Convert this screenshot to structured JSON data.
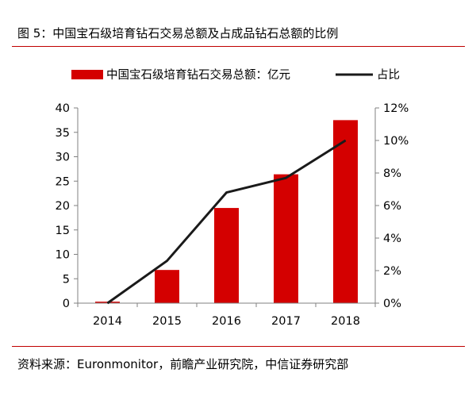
{
  "figure": {
    "title": "图 5：中国宝石级培育钻石交易总额及占成品钻石总额的比例",
    "source": "资料来源：Euronmonitor，前瞻产业研究院，中信证券研究部"
  },
  "colors": {
    "bar": "#d40000",
    "line": "#1a1a1a",
    "accent_rule": "#c00000"
  },
  "chart_data": {
    "type": "bar",
    "categories": [
      "2014",
      "2015",
      "2016",
      "2017",
      "2018"
    ],
    "series": [
      {
        "name": "中国宝石级培育钻石交易总额：亿元",
        "type": "bar",
        "axis": "left",
        "values": [
          0.3,
          6.8,
          19.5,
          26.4,
          37.5
        ]
      },
      {
        "name": "占比",
        "type": "line",
        "axis": "right",
        "values": [
          0.0,
          2.6,
          6.8,
          7.7,
          10.0
        ]
      }
    ],
    "y_left": {
      "min": 0,
      "max": 40,
      "ticks": [
        "0",
        "5",
        "10",
        "15",
        "20",
        "25",
        "30",
        "35",
        "40"
      ]
    },
    "y_right": {
      "min": 0,
      "max": 12,
      "ticks": [
        "0%",
        "2%",
        "4%",
        "6%",
        "8%",
        "10%",
        "12%"
      ]
    },
    "grid": false,
    "legend": "top"
  }
}
